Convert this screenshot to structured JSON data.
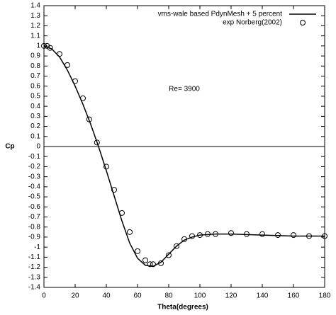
{
  "chart_data": {
    "type": "line",
    "xlabel": "Theta(degrees)",
    "ylabel": "Cp",
    "annotation": "Re= 3900",
    "annotation_at": [
      90,
      0.57
    ],
    "xlim": [
      0,
      180
    ],
    "xticks": [
      0,
      20,
      40,
      60,
      80,
      100,
      120,
      140,
      160,
      180
    ],
    "ylim": [
      -1.4,
      1.4
    ],
    "yticks": [
      1.4,
      1.3,
      1.2,
      1.1,
      1,
      0.9,
      0.8,
      0.7,
      0.6,
      0.5,
      0.4,
      0.3,
      0.2,
      0.1,
      0,
      -0.1,
      -0.2,
      -0.3,
      -0.4,
      -0.5,
      -0.6,
      -0.7,
      -0.8,
      -0.9,
      -1,
      -1.1,
      -1.2,
      -1.3,
      -1.4
    ],
    "zero_line": true,
    "legend": "upper right",
    "series": [
      {
        "name": "vms-wale based PdynMesh + 5 percent",
        "color": "#000000",
        "style": "line",
        "x": [
          0,
          5,
          10,
          15,
          20,
          25,
          30,
          35,
          40,
          45,
          50,
          55,
          60,
          65,
          70,
          75,
          80,
          85,
          90,
          95,
          100,
          110,
          120,
          130,
          140,
          150,
          160,
          170,
          180
        ],
        "values": [
          1.0,
          0.97,
          0.89,
          0.76,
          0.6,
          0.42,
          0.22,
          0.0,
          -0.24,
          -0.49,
          -0.74,
          -0.96,
          -1.11,
          -1.18,
          -1.19,
          -1.15,
          -1.07,
          -0.99,
          -0.93,
          -0.9,
          -0.88,
          -0.87,
          -0.87,
          -0.875,
          -0.88,
          -0.885,
          -0.89,
          -0.89,
          -0.89
        ]
      },
      {
        "name": "exp Norberg(2002)",
        "color": "#000000",
        "style": "markers",
        "x": [
          0,
          2,
          4,
          10,
          15,
          20,
          25,
          29,
          34,
          40,
          45,
          50,
          55,
          60,
          65,
          68,
          70,
          75,
          80,
          85,
          90,
          95,
          100,
          105,
          110,
          120,
          130,
          140,
          150,
          160,
          170,
          180
        ],
        "values": [
          1.0,
          1.0,
          0.98,
          0.92,
          0.81,
          0.65,
          0.48,
          0.27,
          0.04,
          -0.2,
          -0.43,
          -0.66,
          -0.85,
          -1.04,
          -1.13,
          -1.17,
          -1.17,
          -1.16,
          -1.08,
          -0.99,
          -0.92,
          -0.89,
          -0.88,
          -0.87,
          -0.87,
          -0.86,
          -0.87,
          -0.87,
          -0.88,
          -0.88,
          -0.89,
          -0.89
        ]
      }
    ]
  }
}
